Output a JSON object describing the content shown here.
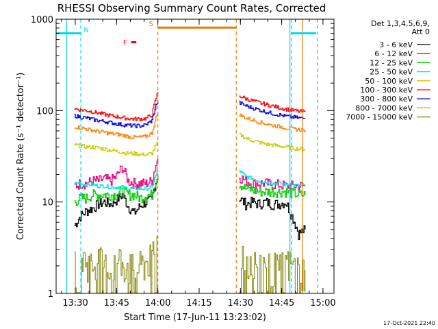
{
  "chart_data": {
    "type": "line",
    "title": "RHESSI Observing Summary Count Rates, Corrected",
    "xlabel": "Start Time (17-Jun-11 13:23:02)",
    "ylabel": "Corrected Count Rate (s⁻¹ detector⁻¹)",
    "yscale": "log",
    "ylim": [
      1,
      1000
    ],
    "xlim": [
      "13:23:02",
      "15:04:00"
    ],
    "yticks": [
      "1",
      "10",
      "100",
      "1000"
    ],
    "xticks": [
      "13:30",
      "13:45",
      "14:00",
      "14:15",
      "14:30",
      "14:45",
      "15:00"
    ],
    "grid": false,
    "legend_header": [
      "Det 1,3,4,5,6,9,",
      "Att 0"
    ],
    "legend_position": "right",
    "timestamp": "17-Oct-2021 22:40",
    "segments": [
      {
        "start": "13:29:40",
        "end": "14:00:00"
      },
      {
        "start": "14:29:30",
        "end": "14:53:30"
      }
    ],
    "series": [
      {
        "name": "3 - 6 keV",
        "color": "#000000",
        "seg1": [
          5.5,
          7,
          8,
          8.5,
          9.5,
          10,
          9.5,
          10.5,
          12,
          9,
          7.5,
          9,
          10,
          10.5,
          20
        ],
        "seg2": [
          11,
          9.5,
          10,
          9.5,
          10,
          9.5,
          9.5,
          10,
          7,
          4.5,
          5
        ]
      },
      {
        "name": "6 - 12 keV",
        "color": "#e6007e",
        "seg1": [
          15,
          16,
          16,
          17,
          17,
          18,
          17,
          19,
          24,
          17,
          16,
          16,
          16,
          17,
          30
        ],
        "seg2": [
          19,
          17,
          16,
          16,
          16,
          15.5,
          15.5,
          15,
          15,
          15,
          15
        ]
      },
      {
        "name": "12 - 25 keV",
        "color": "#00cc00",
        "seg1": [
          10,
          11,
          11,
          12,
          12,
          12,
          12,
          12,
          13,
          12,
          12,
          11,
          12,
          12,
          20
        ],
        "seg2": [
          16,
          14,
          13.5,
          13,
          13,
          13,
          13,
          13,
          12.5,
          12,
          12
        ]
      },
      {
        "name": "25 - 50 keV",
        "color": "#00e5e5",
        "seg1": [
          16,
          16,
          15.5,
          15.5,
          15,
          15,
          14.5,
          14.5,
          14.5,
          14,
          14,
          14,
          14,
          14.5,
          22
        ],
        "seg2": [
          22,
          19,
          18,
          17,
          16.5,
          16,
          16,
          15.5,
          15.5,
          15,
          15
        ]
      },
      {
        "name": "50 - 100 keV",
        "color": "#cccc00",
        "seg1": [
          42,
          41,
          40,
          40,
          39,
          38,
          37,
          36,
          35,
          34,
          34,
          33,
          33,
          34,
          45
        ],
        "seg2": [
          55,
          50,
          47,
          45,
          43,
          42,
          41,
          40,
          39,
          38,
          38
        ]
      },
      {
        "name": "100 - 300 keV",
        "color": "#ff0000",
        "seg1": [
          105,
          102,
          100,
          97,
          94,
          91,
          88,
          86,
          84,
          82,
          81,
          81,
          82,
          90,
          160
        ],
        "seg2": [
          145,
          135,
          128,
          122,
          117,
          112,
          108,
          104,
          101,
          98,
          97
        ]
      },
      {
        "name": "300 - 800 keV",
        "color": "#0000e6",
        "seg1": [
          88,
          85,
          83,
          80,
          78,
          76,
          74,
          72,
          70,
          69,
          68,
          68,
          70,
          78,
          130
        ],
        "seg2": [
          122,
          113,
          107,
          102,
          97,
          93,
          90,
          87,
          85,
          83,
          82
        ]
      },
      {
        "name": "800 - 7000 keV",
        "color": "#ff7f00",
        "seg1": [
          67,
          65,
          63,
          61,
          59,
          58,
          56,
          55,
          54,
          52,
          51,
          51,
          52,
          57,
          95
        ],
        "seg2": [
          90,
          83,
          79,
          75,
          72,
          69,
          67,
          65,
          63,
          62,
          61
        ]
      },
      {
        "name": "7000 - 15000 keV",
        "color": "#808000",
        "seg1": [
          2,
          2.5,
          2.2,
          2,
          2.3,
          2,
          1.8,
          2.5,
          2.2,
          2,
          1.8,
          2,
          2.2,
          2.5,
          4
        ],
        "seg2": [
          3,
          2.5,
          2.2,
          2,
          2.3,
          2,
          1.8,
          2.2,
          2,
          1.8,
          1.8
        ]
      }
    ],
    "flags": [
      {
        "label": "N",
        "color": "#00d8e8",
        "lines": [
          "13:32:00",
          "14:48:30"
        ],
        "line_style": "dashed",
        "bars": [
          {
            "start": "13:23:02",
            "end": "13:32:00",
            "y": 700
          },
          {
            "start": "14:48:30",
            "end": "14:57:30",
            "y": 700
          }
        ]
      },
      {
        "label": "S",
        "color": "#f07800",
        "lines": [
          "14:00:00",
          "14:28:30"
        ],
        "line_style": "dashed",
        "bars": [
          {
            "start": "14:00:00",
            "end": "14:28:30",
            "y": 810
          }
        ]
      },
      {
        "label": "F",
        "color": "#e80000",
        "bars": [
          {
            "start": "13:50:20",
            "end": "13:52:10",
            "y": 560
          }
        ]
      }
    ],
    "boundaries": [
      {
        "time": "13:26:50",
        "color": "#00d8e8"
      },
      {
        "time": "14:48:00",
        "color": "#00d8e8"
      },
      {
        "time": "14:52:30",
        "color": "#f07800"
      },
      {
        "time": "14:58:00",
        "color": "#00d8e8",
        "line_style": "dashed"
      }
    ]
  }
}
